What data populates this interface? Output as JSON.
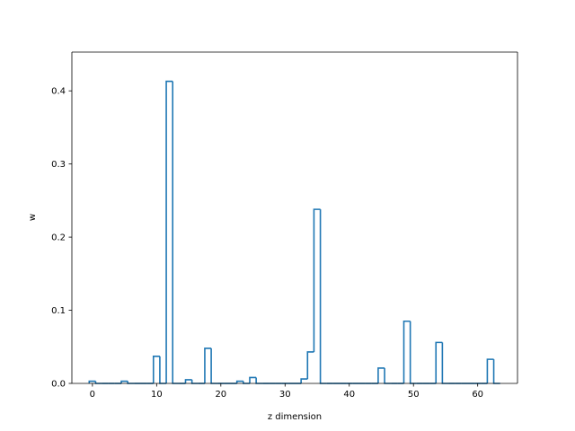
{
  "chart_data": {
    "type": "bar",
    "style": "step-histogram",
    "title": "",
    "xlabel": "z dimension",
    "ylabel": "w",
    "xlim": [
      -3.2,
      66.2
    ],
    "ylim": [
      0,
      0.453
    ],
    "xticks": [
      0,
      10,
      20,
      30,
      40,
      50,
      60
    ],
    "yticks": [
      0.0,
      0.1,
      0.2,
      0.3,
      0.4
    ],
    "ytick_labels": [
      "0.0",
      "0.1",
      "0.2",
      "0.3",
      "0.4"
    ],
    "grid": false,
    "line_color": "#1f77b4",
    "x": [
      0,
      1,
      2,
      3,
      4,
      5,
      6,
      7,
      8,
      9,
      10,
      11,
      12,
      13,
      14,
      15,
      16,
      17,
      18,
      19,
      20,
      21,
      22,
      23,
      24,
      25,
      26,
      27,
      28,
      29,
      30,
      31,
      32,
      33,
      34,
      35,
      36,
      37,
      38,
      39,
      40,
      41,
      42,
      43,
      44,
      45,
      46,
      47,
      48,
      49,
      50,
      51,
      52,
      53,
      54,
      55,
      56,
      57,
      58,
      59,
      60,
      61,
      62,
      63
    ],
    "values": [
      0.003,
      0,
      0,
      0,
      0,
      0.003,
      0,
      0,
      0,
      0,
      0.037,
      0,
      0.413,
      0,
      0,
      0.005,
      0,
      0,
      0.048,
      0,
      0,
      0,
      0,
      0.003,
      0,
      0.008,
      0,
      0,
      0,
      0,
      0,
      0,
      0,
      0.006,
      0.043,
      0.238,
      0,
      0,
      0,
      0,
      0,
      0,
      0,
      0,
      0,
      0.021,
      0,
      0,
      0,
      0.085,
      0,
      0,
      0,
      0,
      0.056,
      0,
      0,
      0,
      0,
      0,
      0,
      0,
      0.033,
      0
    ]
  }
}
